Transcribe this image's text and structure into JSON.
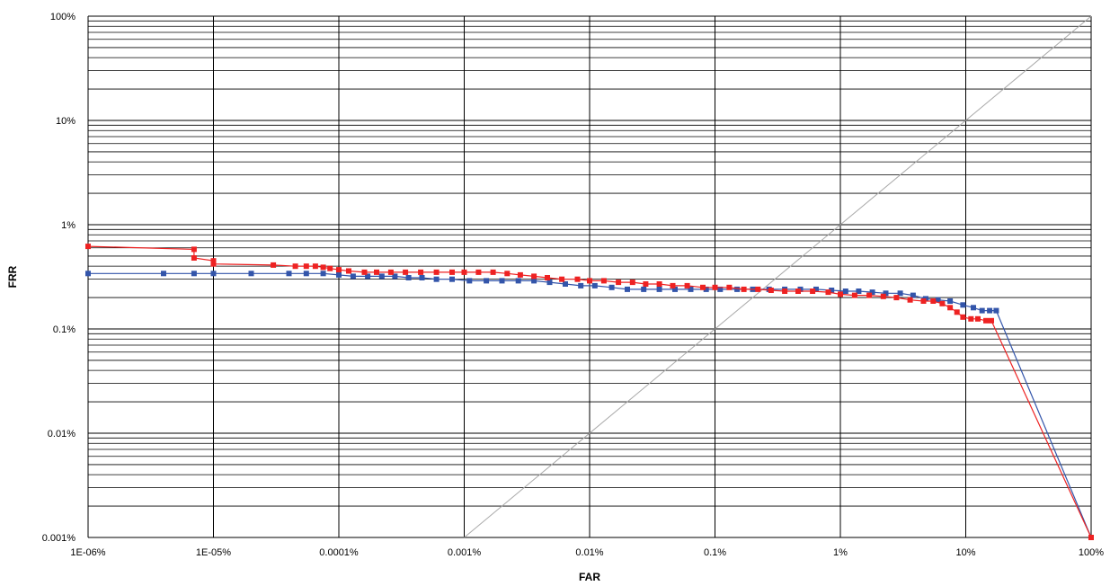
{
  "chart_data": {
    "type": "scatter",
    "title": "",
    "xlabel": "FAR",
    "ylabel": "FRR",
    "xscale": "log",
    "yscale": "log",
    "xlim": [
      1e-06,
      100
    ],
    "ylim": [
      0.001,
      100
    ],
    "x_ticks": [
      {
        "value": 1e-06,
        "label": "1E-06%"
      },
      {
        "value": 1e-05,
        "label": "1E-05%"
      },
      {
        "value": 0.0001,
        "label": "0.0001%"
      },
      {
        "value": 0.001,
        "label": "0.001%"
      },
      {
        "value": 0.01,
        "label": "0.01%"
      },
      {
        "value": 0.1,
        "label": "0.1%"
      },
      {
        "value": 1,
        "label": "1%"
      },
      {
        "value": 10,
        "label": "10%"
      },
      {
        "value": 100,
        "label": "100%"
      }
    ],
    "y_ticks": [
      {
        "value": 0.001,
        "label": "0.001%"
      },
      {
        "value": 0.01,
        "label": "0.01%"
      },
      {
        "value": 0.1,
        "label": "0.1%"
      },
      {
        "value": 1,
        "label": "1%"
      },
      {
        "value": 10,
        "label": "10%"
      },
      {
        "value": 100,
        "label": "100%"
      }
    ],
    "grid": true,
    "minor_grid": true,
    "reference_line": {
      "x": [
        0.001,
        100
      ],
      "y": [
        0.001,
        100
      ],
      "color": "#aaaaaa"
    },
    "series": [
      {
        "color": "#3355aa",
        "points": [
          [
            1e-06,
            0.34
          ],
          [
            4e-06,
            0.34
          ],
          [
            7e-06,
            0.34
          ],
          [
            1e-05,
            0.34
          ],
          [
            2e-05,
            0.34
          ],
          [
            4e-05,
            0.34
          ],
          [
            5.5e-05,
            0.34
          ],
          [
            7.5e-05,
            0.34
          ],
          [
            0.0001,
            0.33
          ],
          [
            0.00013,
            0.32
          ],
          [
            0.00017,
            0.32
          ],
          [
            0.00022,
            0.32
          ],
          [
            0.00028,
            0.32
          ],
          [
            0.00036,
            0.31
          ],
          [
            0.00046,
            0.31
          ],
          [
            0.0006,
            0.3
          ],
          [
            0.0008,
            0.3
          ],
          [
            0.0011,
            0.29
          ],
          [
            0.0015,
            0.29
          ],
          [
            0.002,
            0.29
          ],
          [
            0.0027,
            0.29
          ],
          [
            0.0036,
            0.29
          ],
          [
            0.0048,
            0.28
          ],
          [
            0.0064,
            0.27
          ],
          [
            0.0085,
            0.26
          ],
          [
            0.011,
            0.26
          ],
          [
            0.015,
            0.25
          ],
          [
            0.02,
            0.24
          ],
          [
            0.027,
            0.24
          ],
          [
            0.036,
            0.24
          ],
          [
            0.048,
            0.24
          ],
          [
            0.064,
            0.24
          ],
          [
            0.085,
            0.24
          ],
          [
            0.11,
            0.24
          ],
          [
            0.15,
            0.24
          ],
          [
            0.2,
            0.24
          ],
          [
            0.27,
            0.24
          ],
          [
            0.36,
            0.24
          ],
          [
            0.48,
            0.24
          ],
          [
            0.64,
            0.24
          ],
          [
            0.85,
            0.235
          ],
          [
            1.1,
            0.23
          ],
          [
            1.4,
            0.23
          ],
          [
            1.8,
            0.225
          ],
          [
            2.3,
            0.22
          ],
          [
            3.0,
            0.22
          ],
          [
            3.8,
            0.21
          ],
          [
            4.8,
            0.195
          ],
          [
            6.0,
            0.19
          ],
          [
            7.5,
            0.185
          ],
          [
            9.5,
            0.17
          ],
          [
            11.5,
            0.16
          ],
          [
            13.5,
            0.15
          ],
          [
            15.5,
            0.15
          ],
          [
            17.5,
            0.15
          ],
          [
            100,
            0.001
          ]
        ]
      },
      {
        "color": "#ee2222",
        "points": [
          [
            1e-06,
            0.62
          ],
          [
            7e-06,
            0.58
          ],
          [
            7e-06,
            0.48
          ],
          [
            1e-05,
            0.45
          ],
          [
            1e-05,
            0.42
          ],
          [
            3e-05,
            0.41
          ],
          [
            4.5e-05,
            0.4
          ],
          [
            5.5e-05,
            0.4
          ],
          [
            6.5e-05,
            0.4
          ],
          [
            7.5e-05,
            0.39
          ],
          [
            8.5e-05,
            0.38
          ],
          [
            0.0001,
            0.37
          ],
          [
            0.00012,
            0.36
          ],
          [
            0.00016,
            0.35
          ],
          [
            0.0002,
            0.35
          ],
          [
            0.00026,
            0.35
          ],
          [
            0.00034,
            0.35
          ],
          [
            0.00045,
            0.35
          ],
          [
            0.0006,
            0.35
          ],
          [
            0.0008,
            0.35
          ],
          [
            0.001,
            0.35
          ],
          [
            0.0013,
            0.35
          ],
          [
            0.0017,
            0.35
          ],
          [
            0.0022,
            0.34
          ],
          [
            0.0028,
            0.33
          ],
          [
            0.0036,
            0.32
          ],
          [
            0.0046,
            0.31
          ],
          [
            0.006,
            0.3
          ],
          [
            0.008,
            0.3
          ],
          [
            0.01,
            0.29
          ],
          [
            0.013,
            0.29
          ],
          [
            0.017,
            0.28
          ],
          [
            0.022,
            0.28
          ],
          [
            0.028,
            0.27
          ],
          [
            0.036,
            0.27
          ],
          [
            0.046,
            0.26
          ],
          [
            0.06,
            0.26
          ],
          [
            0.08,
            0.25
          ],
          [
            0.1,
            0.25
          ],
          [
            0.13,
            0.25
          ],
          [
            0.17,
            0.24
          ],
          [
            0.22,
            0.24
          ],
          [
            0.28,
            0.235
          ],
          [
            0.36,
            0.23
          ],
          [
            0.46,
            0.23
          ],
          [
            0.6,
            0.23
          ],
          [
            0.8,
            0.225
          ],
          [
            1.0,
            0.215
          ],
          [
            1.3,
            0.21
          ],
          [
            1.7,
            0.21
          ],
          [
            2.2,
            0.205
          ],
          [
            2.8,
            0.2
          ],
          [
            3.6,
            0.19
          ],
          [
            4.6,
            0.185
          ],
          [
            5.5,
            0.185
          ],
          [
            6.5,
            0.175
          ],
          [
            7.5,
            0.16
          ],
          [
            8.5,
            0.145
          ],
          [
            9.5,
            0.13
          ],
          [
            11,
            0.125
          ],
          [
            12.5,
            0.125
          ],
          [
            14.5,
            0.12
          ],
          [
            16,
            0.12
          ],
          [
            100,
            0.001
          ]
        ]
      }
    ]
  }
}
